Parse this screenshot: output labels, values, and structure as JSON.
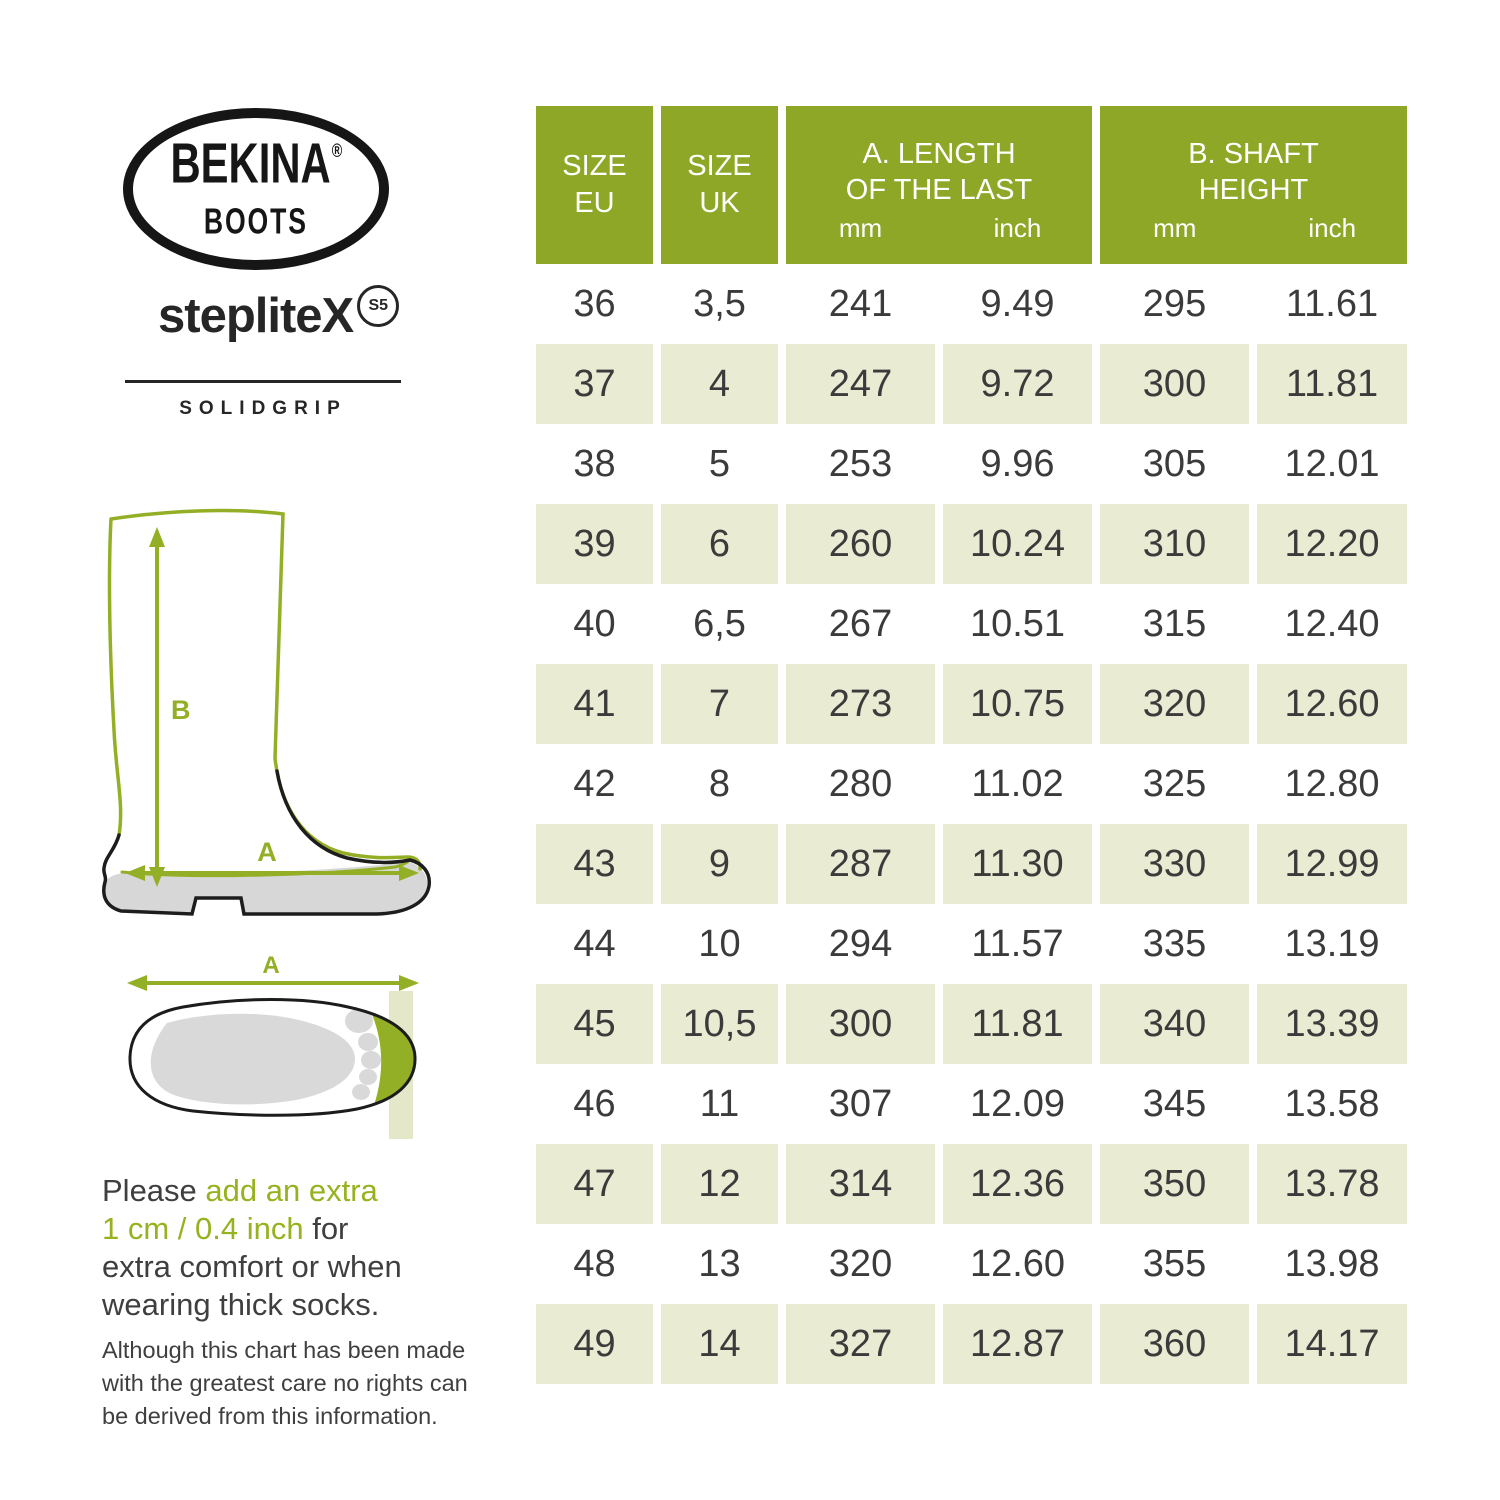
{
  "brand": {
    "name": "BEKINA",
    "reg": "®",
    "boots": "BOOTS",
    "product": "stepliteX",
    "badge": "S5",
    "grip": "SOLIDGRIP"
  },
  "diagrams": {
    "boot_label_a": "A",
    "boot_label_b": "B",
    "foot_label_a": "A"
  },
  "note": {
    "lines": [
      [
        {
          "t": "Please ",
          "c": "dark"
        },
        {
          "t": "add an extra",
          "c": "green"
        }
      ],
      [
        {
          "t": "1 cm / 0.4 inch",
          "c": "green"
        },
        {
          "t": " for",
          "c": "dark"
        }
      ],
      [
        {
          "t": "extra comfort or when",
          "c": "dark"
        }
      ],
      [
        {
          "t": "wearing thick socks.",
          "c": "dark"
        }
      ]
    ],
    "disclaimer_lines": [
      "Although this chart has been made",
      "with the greatest care no rights can",
      "be derived from this information."
    ]
  },
  "table": {
    "header": {
      "eu": [
        "SIZE",
        "EU"
      ],
      "uk": [
        "SIZE",
        "UK"
      ],
      "a_title": [
        "A. LENGTH",
        "OF THE LAST"
      ],
      "b_title": [
        "B. SHAFT",
        "HEIGHT"
      ],
      "units": [
        "mm",
        "inch"
      ]
    },
    "rows": [
      [
        "36",
        "3,5",
        "241",
        "9.49",
        "295",
        "11.61"
      ],
      [
        "37",
        "4",
        "247",
        "9.72",
        "300",
        "11.81"
      ],
      [
        "38",
        "5",
        "253",
        "9.96",
        "305",
        "12.01"
      ],
      [
        "39",
        "6",
        "260",
        "10.24",
        "310",
        "12.20"
      ],
      [
        "40",
        "6,5",
        "267",
        "10.51",
        "315",
        "12.40"
      ],
      [
        "41",
        "7",
        "273",
        "10.75",
        "320",
        "12.60"
      ],
      [
        "42",
        "8",
        "280",
        "11.02",
        "325",
        "12.80"
      ],
      [
        "43",
        "9",
        "287",
        "11.30",
        "330",
        "12.99"
      ],
      [
        "44",
        "10",
        "294",
        "11.57",
        "335",
        "13.19"
      ],
      [
        "45",
        "10,5",
        "300",
        "11.81",
        "340",
        "13.39"
      ],
      [
        "46",
        "11",
        "307",
        "12.09",
        "345",
        "13.58"
      ],
      [
        "47",
        "12",
        "314",
        "12.36",
        "350",
        "13.78"
      ],
      [
        "48",
        "13",
        "320",
        "12.60",
        "355",
        "13.98"
      ],
      [
        "49",
        "14",
        "327",
        "12.87",
        "360",
        "14.17"
      ]
    ]
  },
  "colors": {
    "header_green": "#8fa727",
    "row_shade": "#eaebd3",
    "accent_green": "#96b21f",
    "diagram_green": "#93af25"
  }
}
